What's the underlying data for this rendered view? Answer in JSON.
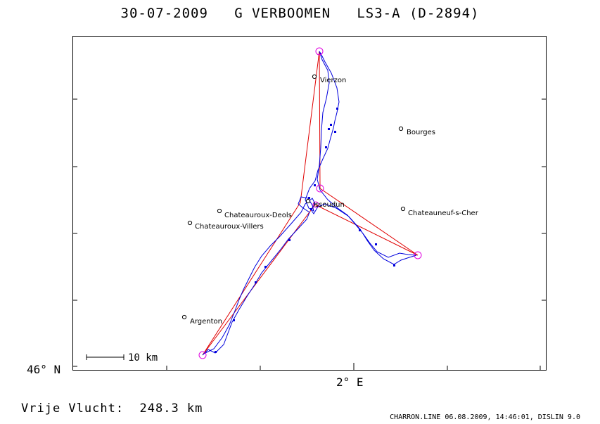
{
  "header": {
    "title": "30-07-2009   G VERBOOMEN   LS3-A (D-2894)"
  },
  "axes": {
    "lat_label": "46° N",
    "lon_label": "2° E"
  },
  "scale_bar": {
    "label": "10 km"
  },
  "towns": [
    {
      "name": "Vierzon",
      "key": "vierzon"
    },
    {
      "name": "Bourges",
      "key": "bourges"
    },
    {
      "name": "Issoudun",
      "key": "issoudun"
    },
    {
      "name": "Chateauroux-Deols",
      "key": "chateauroux-deols"
    },
    {
      "name": "Chateauroux-Villers",
      "key": "chateauroux-villers"
    },
    {
      "name": "Chateauneuf-s-Cher",
      "key": "chateauneuf-s-cher"
    },
    {
      "name": "Argenton",
      "key": "argenton"
    }
  ],
  "colors": {
    "task_line": "#e00000",
    "track_line": "#0000dd",
    "turnpoint": "#e000e0",
    "frame": "#000000"
  },
  "footer": {
    "distance_text": "Vrije Vlucht:  248.3 km",
    "credit": "CHARRON.LINE 06.08.2009, 14:46:01, DISLIN 9.0"
  }
}
